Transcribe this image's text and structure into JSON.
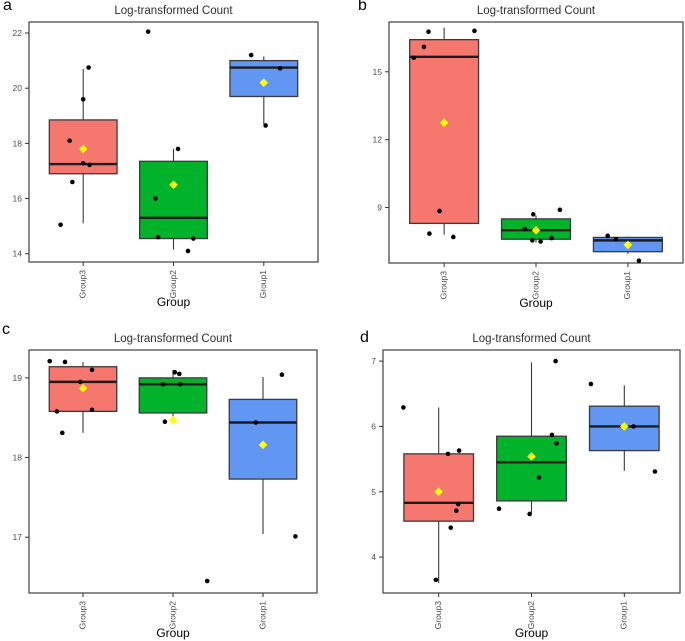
{
  "palette": {
    "group_fills": {
      "Group3": "#F5776E",
      "Group2": "#00B32B",
      "Group1": "#6197F2"
    },
    "box_border": "#3A3A3A",
    "median_line": "#1C1C1C",
    "whisker": "#3A3A3A",
    "jitter_point": "#000000",
    "mean_marker": "#FFFF00",
    "axis_text": "#4D4D4D",
    "title_text": "#303030",
    "panel_border": "#4D4D4D",
    "axis_title_text": "#000000"
  },
  "chart_data": [
    {
      "type": "bar",
      "panel_label": "a",
      "title": "Log-transformed Count",
      "xlabel": "Group",
      "ylabel": "",
      "categories": [
        "Group3",
        "Group2",
        "Group1"
      ],
      "yticks": [
        14,
        16,
        18,
        20,
        22
      ],
      "ylim": [
        13.7,
        22.4
      ],
      "boxes": [
        {
          "category": "Group3",
          "whisker_low": 15.1,
          "q1": 16.9,
          "median": 17.25,
          "q3": 18.85,
          "whisker_high": 20.7,
          "mean": 17.8,
          "points": [
            [
              -0.15,
              18.1
            ],
            [
              0.0,
              17.28
            ],
            [
              0.07,
              17.22
            ],
            [
              -0.12,
              16.6
            ],
            [
              -0.25,
              15.05
            ],
            [
              0.0,
              19.6
            ],
            [
              0.06,
              20.75
            ]
          ]
        },
        {
          "category": "Group2",
          "whisker_low": 14.15,
          "q1": 14.55,
          "median": 15.3,
          "q3": 17.35,
          "whisker_high": 17.8,
          "mean": 16.5,
          "points": [
            [
              -0.28,
              22.05
            ],
            [
              0.05,
              17.8
            ],
            [
              -0.2,
              16.0
            ],
            [
              -0.17,
              14.6
            ],
            [
              0.22,
              14.55
            ],
            [
              0.16,
              14.1
            ]
          ]
        },
        {
          "category": "Group1",
          "whisker_low": 18.7,
          "q1": 19.7,
          "median": 20.75,
          "q3": 21.0,
          "whisker_high": 21.15,
          "mean": 20.2,
          "points": [
            [
              -0.14,
              21.2
            ],
            [
              0.18,
              20.72
            ],
            [
              0.02,
              18.65
            ]
          ]
        }
      ]
    },
    {
      "type": "bar",
      "panel_label": "b",
      "title": "Log-transformed Count",
      "xlabel": "Group",
      "ylabel": "",
      "categories": [
        "Group3",
        "Group2",
        "Group1"
      ],
      "yticks": [
        9,
        12,
        15
      ],
      "ylim": [
        6.55,
        17.2
      ],
      "boxes": [
        {
          "category": "Group3",
          "whisker_low": 7.8,
          "q1": 8.3,
          "median": 15.66,
          "q3": 16.42,
          "whisker_high": 16.95,
          "mean": 12.75,
          "points": [
            [
              -0.17,
              16.77
            ],
            [
              0.33,
              16.81
            ],
            [
              -0.22,
              16.1
            ],
            [
              -0.33,
              15.62
            ],
            [
              -0.05,
              8.85
            ],
            [
              -0.16,
              7.85
            ],
            [
              0.1,
              7.7
            ]
          ]
        },
        {
          "category": "Group2",
          "whisker_low": 7.45,
          "q1": 7.6,
          "median": 8.0,
          "q3": 8.5,
          "whisker_high": 8.65,
          "mean": 8.0,
          "points": [
            [
              -0.03,
              8.7
            ],
            [
              0.26,
              8.9
            ],
            [
              -0.12,
              8.05
            ],
            [
              -0.04,
              7.55
            ],
            [
              0.05,
              7.5
            ],
            [
              0.17,
              7.65
            ]
          ]
        },
        {
          "category": "Group1",
          "whisker_low": 6.95,
          "q1": 7.05,
          "median": 7.55,
          "q3": 7.68,
          "whisker_high": 7.72,
          "mean": 7.35,
          "points": [
            [
              -0.22,
              7.75
            ],
            [
              -0.13,
              7.6
            ],
            [
              0.12,
              6.65
            ]
          ]
        }
      ]
    },
    {
      "type": "bar",
      "panel_label": "c",
      "title": "Log-transformed Count",
      "xlabel": "Group",
      "ylabel": "",
      "categories": [
        "Group3",
        "Group2",
        "Group1"
      ],
      "yticks": [
        17,
        18,
        19
      ],
      "ylim": [
        16.3,
        19.35
      ],
      "boxes": [
        {
          "category": "Group3",
          "whisker_low": 18.31,
          "q1": 18.58,
          "median": 18.95,
          "q3": 19.14,
          "whisker_high": 19.2,
          "mean": 18.87,
          "points": [
            [
              -0.37,
              19.21
            ],
            [
              -0.2,
              19.2
            ],
            [
              0.1,
              19.1
            ],
            [
              -0.03,
              18.95
            ],
            [
              -0.29,
              18.58
            ],
            [
              0.1,
              18.6
            ],
            [
              -0.23,
              18.31
            ]
          ]
        },
        {
          "category": "Group2",
          "whisker_low": 18.49,
          "q1": 18.56,
          "median": 18.92,
          "q3": 19.0,
          "whisker_high": 19.1,
          "mean": 18.47,
          "points": [
            [
              0.02,
              19.07
            ],
            [
              0.07,
              19.05
            ],
            [
              -0.11,
              18.92
            ],
            [
              0.08,
              18.92
            ],
            [
              -0.09,
              18.45
            ],
            [
              0.38,
              16.45
            ]
          ]
        },
        {
          "category": "Group1",
          "whisker_low": 17.04,
          "q1": 17.73,
          "median": 18.44,
          "q3": 18.73,
          "whisker_high": 19.01,
          "mean": 18.16,
          "points": [
            [
              0.21,
              19.04
            ],
            [
              -0.08,
              18.44
            ],
            [
              0.36,
              17.01
            ]
          ]
        }
      ]
    },
    {
      "type": "bar",
      "panel_label": "d",
      "title": "Log-transformed Count",
      "xlabel": "Group",
      "ylabel": "",
      "categories": [
        "Group3",
        "Group2",
        "Group1"
      ],
      "yticks": [
        4,
        5,
        6,
        7
      ],
      "ylim": [
        3.45,
        7.17
      ],
      "boxes": [
        {
          "category": "Group3",
          "whisker_low": 3.6,
          "q1": 4.55,
          "median": 4.83,
          "q3": 5.58,
          "whisker_high": 6.29,
          "mean": 5.0,
          "points": [
            [
              -0.38,
              6.29
            ],
            [
              0.1,
              5.58
            ],
            [
              0.22,
              5.63
            ],
            [
              0.21,
              4.81
            ],
            [
              0.19,
              4.71
            ],
            [
              0.13,
              4.45
            ],
            [
              -0.03,
              3.65
            ]
          ]
        },
        {
          "category": "Group2",
          "whisker_low": 4.68,
          "q1": 4.86,
          "median": 5.45,
          "q3": 5.85,
          "whisker_high": 6.98,
          "mean": 5.54,
          "points": [
            [
              0.26,
              7.0
            ],
            [
              0.22,
              5.87
            ],
            [
              0.27,
              5.74
            ],
            [
              0.08,
              5.22
            ],
            [
              -0.35,
              4.74
            ],
            [
              -0.02,
              4.66
            ]
          ]
        },
        {
          "category": "Group1",
          "whisker_low": 5.32,
          "q1": 5.63,
          "median": 6.0,
          "q3": 6.31,
          "whisker_high": 6.63,
          "mean": 6.0,
          "points": [
            [
              -0.36,
              6.65
            ],
            [
              0.1,
              6.0
            ],
            [
              0.33,
              5.31
            ]
          ]
        }
      ]
    }
  ]
}
